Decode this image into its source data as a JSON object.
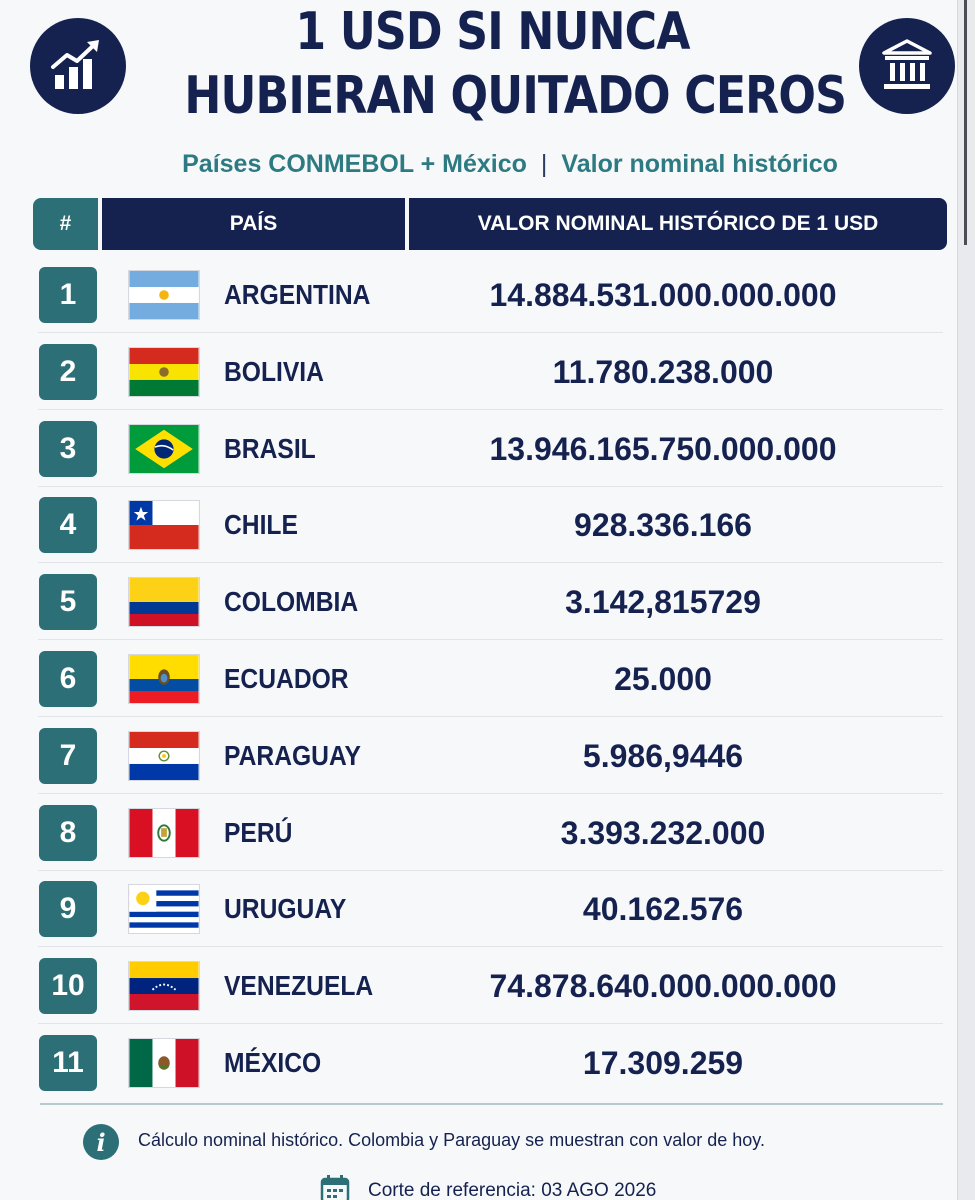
{
  "header": {
    "title_line1": "1 USD SI NUNCA",
    "title_line2": "HUBIERAN QUITADO CEROS",
    "subtitle_left": "Países CONMEBOL + México",
    "subtitle_sep": "|",
    "subtitle_right": "Valor nominal histórico",
    "left_icon": "growth-chart-icon",
    "right_icon": "bank-building-icon"
  },
  "table": {
    "col_num": "#",
    "col_country": "PAÍS",
    "col_value": "VALOR NOMINAL HISTÓRICO DE 1 USD",
    "rows": [
      {
        "num": "1",
        "country": "ARGENTINA",
        "value": "14.884.531.000.000.000",
        "flag": "argentina-flag"
      },
      {
        "num": "2",
        "country": "BOLIVIA",
        "value": "11.780.238.000",
        "flag": "bolivia-flag"
      },
      {
        "num": "3",
        "country": "BRASIL",
        "value": "13.946.165.750.000.000",
        "flag": "brazil-flag"
      },
      {
        "num": "4",
        "country": "CHILE",
        "value": "928.336.166",
        "flag": "chile-flag"
      },
      {
        "num": "5",
        "country": "COLOMBIA",
        "value": "3.142,815729",
        "flag": "colombia-flag"
      },
      {
        "num": "6",
        "country": "ECUADOR",
        "value": "25.000",
        "flag": "ecuador-flag"
      },
      {
        "num": "7",
        "country": "PARAGUAY",
        "value": "5.986,9446",
        "flag": "paraguay-flag"
      },
      {
        "num": "8",
        "country": "PERÚ",
        "value": "3.393.232.000",
        "flag": "peru-flag"
      },
      {
        "num": "9",
        "country": "URUGUAY",
        "value": "40.162.576",
        "flag": "uruguay-flag"
      },
      {
        "num": "10",
        "country": "VENEZUELA",
        "value": "74.878.640.000.000.000",
        "flag": "venezuela-flag"
      },
      {
        "num": "11",
        "country": "MÉXICO",
        "value": "17.309.259",
        "flag": "mexico-flag"
      }
    ]
  },
  "footer": {
    "info_glyph": "i",
    "note": "Cálculo nominal histórico. Colombia y Paraguay se muestran con valor de hoy.",
    "cutoff": "Corte de referencia: 03 AGO 2026"
  },
  "colors": {
    "navy": "#15224f",
    "teal": "#2d6f77",
    "subtitle_teal": "#2d7a82"
  }
}
